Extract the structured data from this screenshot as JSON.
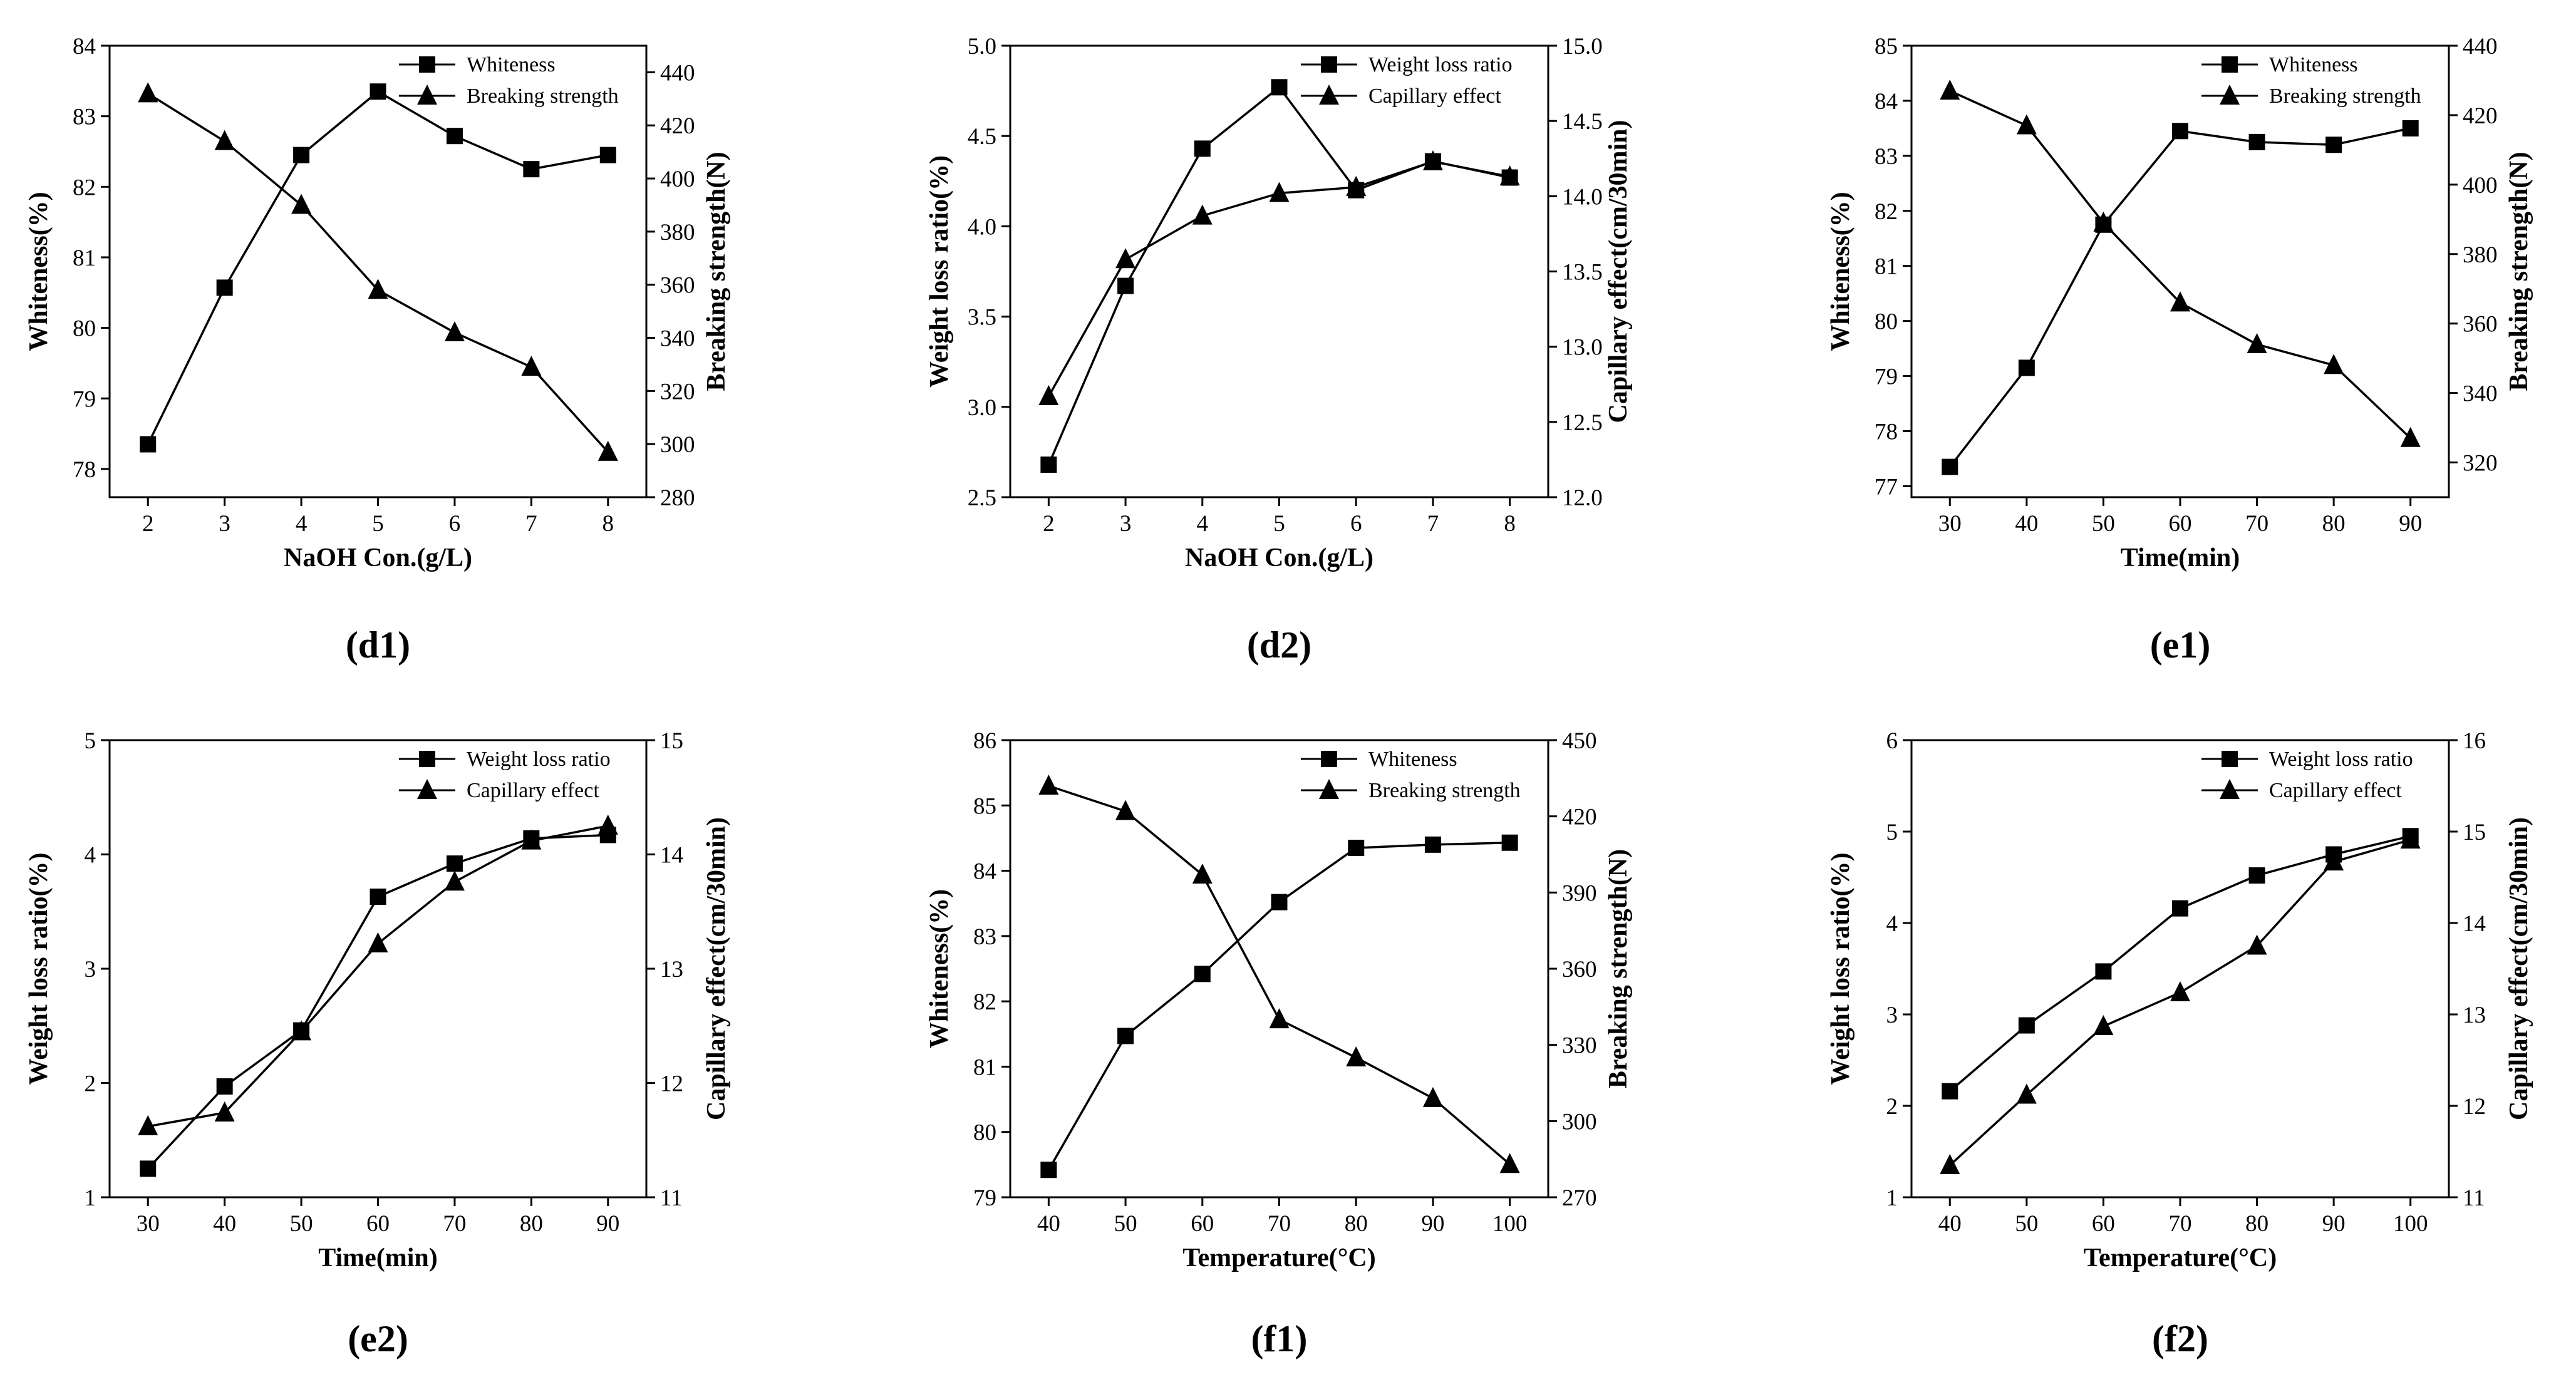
{
  "chart_data": [
    {
      "id": "d1",
      "label": "(d1)",
      "type": "line",
      "xlabel": "NaOH Con.(g/L)",
      "x": [
        2,
        3,
        4,
        5,
        6,
        7,
        8
      ],
      "xticks": [
        "2",
        "3",
        "4",
        "5",
        "6",
        "7",
        "8"
      ],
      "xlim": [
        1.5,
        8.5
      ],
      "left_axis": {
        "label": "Whiteness(%)",
        "ylim": [
          77.6,
          84
        ],
        "ticks": [
          78,
          79,
          80,
          81,
          82,
          83,
          84
        ],
        "tick_labels": [
          "78",
          "79",
          "80",
          "81",
          "82",
          "83",
          "84"
        ]
      },
      "right_axis": {
        "label": "Breaking strength(N)",
        "ylim": [
          280,
          450
        ],
        "ticks": [
          280,
          300,
          320,
          340,
          360,
          380,
          400,
          420,
          440
        ],
        "tick_labels": [
          "280",
          "300",
          "320",
          "340",
          "360",
          "380",
          "400",
          "420",
          "440"
        ]
      },
      "series": [
        {
          "name": "Whiteness",
          "axis": "left",
          "marker": "square",
          "values": [
            78.35,
            80.57,
            82.45,
            83.35,
            82.72,
            82.25,
            82.45
          ]
        },
        {
          "name": "Breaking strength",
          "axis": "right",
          "marker": "triangle",
          "values": [
            432,
            414,
            390,
            358,
            342,
            329,
            297
          ]
        }
      ]
    },
    {
      "id": "d2",
      "label": "(d2)",
      "type": "line",
      "xlabel": "NaOH Con.(g/L)",
      "x": [
        2,
        3,
        4,
        5,
        6,
        7,
        8
      ],
      "xticks": [
        "2",
        "3",
        "4",
        "5",
        "6",
        "7",
        "8"
      ],
      "xlim": [
        1.5,
        8.5
      ],
      "left_axis": {
        "label": "Weight loss ratio(%)",
        "ylim": [
          2.5,
          5.0
        ],
        "ticks": [
          2.5,
          3.0,
          3.5,
          4.0,
          4.5,
          5.0
        ],
        "tick_labels": [
          "2.5",
          "3.0",
          "3.5",
          "4.0",
          "4.5",
          "5.0"
        ]
      },
      "right_axis": {
        "label": "Capillary effect(cm/30min)",
        "ylim": [
          12.0,
          15.0
        ],
        "ticks": [
          12.0,
          12.5,
          13.0,
          13.5,
          14.0,
          14.5,
          15.0
        ],
        "tick_labels": [
          "12.0",
          "12.5",
          "13.0",
          "13.5",
          "14.0",
          "14.5",
          "15.0"
        ]
      },
      "series": [
        {
          "name": "Weight loss ratio",
          "axis": "left",
          "marker": "square",
          "values": [
            2.68,
            3.67,
            4.43,
            4.77,
            4.2,
            4.36,
            4.27
          ]
        },
        {
          "name": "Capillary effect",
          "axis": "right",
          "marker": "triangle",
          "values": [
            12.67,
            13.58,
            13.87,
            14.02,
            14.06,
            14.23,
            14.13
          ]
        }
      ]
    },
    {
      "id": "e1",
      "label": "(e1)",
      "type": "line",
      "xlabel": "Time(min)",
      "x": [
        30,
        40,
        50,
        60,
        70,
        80,
        90
      ],
      "xticks": [
        "30",
        "40",
        "50",
        "60",
        "70",
        "80",
        "90"
      ],
      "xlim": [
        25,
        95
      ],
      "left_axis": {
        "label": "Whiteness(%)",
        "ylim": [
          76.8,
          85
        ],
        "ticks": [
          77,
          78,
          79,
          80,
          81,
          82,
          83,
          84,
          85
        ],
        "tick_labels": [
          "77",
          "78",
          "79",
          "80",
          "81",
          "82",
          "83",
          "84",
          "85"
        ]
      },
      "right_axis": {
        "label": "Breaking strength(N)",
        "ylim": [
          310,
          440
        ],
        "ticks": [
          320,
          340,
          360,
          380,
          400,
          420,
          440
        ],
        "tick_labels": [
          "320",
          "340",
          "360",
          "380",
          "400",
          "420",
          "440"
        ]
      },
      "series": [
        {
          "name": "Whiteness",
          "axis": "left",
          "marker": "square",
          "values": [
            77.35,
            79.15,
            81.75,
            83.45,
            83.25,
            83.2,
            83.5
          ]
        },
        {
          "name": "Breaking strength",
          "axis": "right",
          "marker": "triangle",
          "values": [
            427,
            417,
            389,
            366,
            354,
            348,
            327
          ]
        }
      ]
    },
    {
      "id": "e2",
      "label": "(e2)",
      "type": "line",
      "xlabel": "Time(min)",
      "x": [
        30,
        40,
        50,
        60,
        70,
        80,
        90
      ],
      "xticks": [
        "30",
        "40",
        "50",
        "60",
        "70",
        "80",
        "90"
      ],
      "xlim": [
        25,
        95
      ],
      "left_axis": {
        "label": "Weight loss ratio(%)",
        "ylim": [
          1,
          5
        ],
        "ticks": [
          1,
          2,
          3,
          4,
          5
        ],
        "tick_labels": [
          "1",
          "2",
          "3",
          "4",
          "5"
        ]
      },
      "right_axis": {
        "label": "Capillary effect(cm/30min)",
        "ylim": [
          11,
          15
        ],
        "ticks": [
          11,
          12,
          13,
          14,
          15
        ],
        "tick_labels": [
          "11",
          "12",
          "13",
          "14",
          "15"
        ]
      },
      "series": [
        {
          "name": "Weight loss ratio",
          "axis": "left",
          "marker": "square",
          "values": [
            1.25,
            1.97,
            2.46,
            3.63,
            3.92,
            4.14,
            4.17
          ]
        },
        {
          "name": "Capillary effect",
          "axis": "right",
          "marker": "triangle",
          "values": [
            11.62,
            11.74,
            12.45,
            13.22,
            13.76,
            14.12,
            14.25
          ]
        }
      ]
    },
    {
      "id": "f1",
      "label": "(f1)",
      "type": "line",
      "xlabel": "Temperature(°C)",
      "x": [
        40,
        50,
        60,
        70,
        80,
        90,
        100
      ],
      "xticks": [
        "40",
        "50",
        "60",
        "70",
        "80",
        "90",
        "100"
      ],
      "xlim": [
        35,
        105
      ],
      "left_axis": {
        "label": "Whiteness(%)",
        "ylim": [
          79,
          86
        ],
        "ticks": [
          79,
          80,
          81,
          82,
          83,
          84,
          85,
          86
        ],
        "tick_labels": [
          "79",
          "80",
          "81",
          "82",
          "83",
          "84",
          "85",
          "86"
        ]
      },
      "right_axis": {
        "label": "Breaking strength(N)",
        "ylim": [
          270,
          450
        ],
        "ticks": [
          270,
          300,
          330,
          360,
          390,
          420,
          450
        ],
        "tick_labels": [
          "270",
          "300",
          "330",
          "360",
          "390",
          "420",
          "450"
        ]
      },
      "series": [
        {
          "name": "Whiteness",
          "axis": "left",
          "marker": "square",
          "values": [
            79.42,
            81.47,
            82.42,
            83.52,
            84.35,
            84.4,
            84.43
          ]
        },
        {
          "name": "Breaking strength",
          "axis": "right",
          "marker": "triangle",
          "values": [
            432,
            422,
            397,
            340,
            325,
            309,
            283
          ]
        }
      ]
    },
    {
      "id": "f2",
      "label": "(f2)",
      "type": "line",
      "xlabel": "Temperature(°C)",
      "x": [
        40,
        50,
        60,
        70,
        80,
        90,
        100
      ],
      "xticks": [
        "40",
        "50",
        "60",
        "70",
        "80",
        "90",
        "100"
      ],
      "xlim": [
        35,
        105
      ],
      "left_axis": {
        "label": "Weight loss ratio(%)",
        "ylim": [
          1,
          6
        ],
        "ticks": [
          1,
          2,
          3,
          4,
          5,
          6
        ],
        "tick_labels": [
          "1",
          "2",
          "3",
          "4",
          "5",
          "6"
        ]
      },
      "right_axis": {
        "label": "Capillary effect(cm/30min)",
        "ylim": [
          11,
          16
        ],
        "ticks": [
          11,
          12,
          13,
          14,
          15,
          16
        ],
        "tick_labels": [
          "11",
          "12",
          "13",
          "14",
          "15",
          "16"
        ]
      },
      "series": [
        {
          "name": "Weight loss ratio",
          "axis": "left",
          "marker": "square",
          "values": [
            2.16,
            2.88,
            3.47,
            4.16,
            4.52,
            4.75,
            4.95
          ]
        },
        {
          "name": "Capillary effect",
          "axis": "right",
          "marker": "triangle",
          "values": [
            11.35,
            12.12,
            12.87,
            13.24,
            13.75,
            14.67,
            14.91
          ]
        }
      ]
    }
  ]
}
